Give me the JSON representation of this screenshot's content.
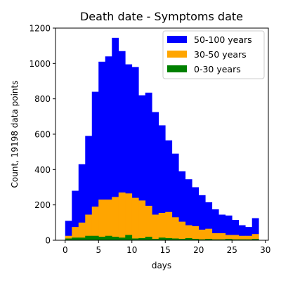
{
  "chart_data": {
    "type": "bar",
    "title": "Death date - Symptoms date",
    "xlabel": "days",
    "ylabel": "Count, 19198 data points",
    "xlim": [
      -1.45,
      30.45
    ],
    "ylim": [
      0,
      1200
    ],
    "x_ticks": [
      0,
      5,
      10,
      15,
      20,
      25,
      30
    ],
    "y_ticks": [
      0,
      200,
      400,
      600,
      800,
      1000,
      1200
    ],
    "bins": [
      0,
      1,
      2,
      3,
      4,
      5,
      6,
      7,
      8,
      9,
      10,
      11,
      12,
      13,
      14,
      15,
      16,
      17,
      18,
      19,
      20,
      21,
      22,
      23,
      24,
      25,
      26,
      27,
      28
    ],
    "bin_width": 1,
    "stacked": false,
    "legend_position": "top-right",
    "series": [
      {
        "name": "50-100 years",
        "color": "#0000ff",
        "values": [
          110,
          280,
          430,
          590,
          840,
          1010,
          1040,
          1145,
          1070,
          995,
          980,
          820,
          835,
          725,
          650,
          565,
          490,
          390,
          345,
          300,
          255,
          215,
          175,
          145,
          140,
          115,
          85,
          75,
          125
        ]
      },
      {
        "name": "30-50 years",
        "color": "#ffa500",
        "values": [
          25,
          75,
          100,
          145,
          190,
          230,
          230,
          245,
          270,
          265,
          240,
          225,
          195,
          145,
          155,
          160,
          130,
          105,
          85,
          80,
          60,
          65,
          40,
          40,
          30,
          30,
          25,
          25,
          35
        ]
      },
      {
        "name": "0-30 years",
        "color": "#008000",
        "values": [
          10,
          15,
          15,
          25,
          25,
          20,
          25,
          20,
          15,
          30,
          10,
          12,
          20,
          8,
          15,
          12,
          10,
          8,
          12,
          8,
          5,
          8,
          5,
          5,
          8,
          5,
          5,
          5,
          8
        ]
      }
    ]
  }
}
